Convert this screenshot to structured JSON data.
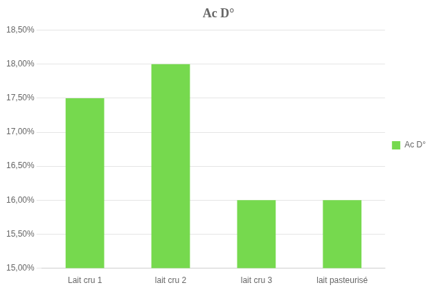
{
  "chart_data": {
    "type": "bar",
    "title": "Ac D°",
    "categories": [
      "Lait cru 1",
      "lait cru 2",
      "lait cru 3",
      "lait pasteurisé"
    ],
    "series": [
      {
        "name": "Ac D°",
        "color": "#76D94E",
        "values": [
          0.175,
          0.18,
          0.16,
          0.16
        ]
      }
    ],
    "ylim": [
      0.15,
      0.185
    ],
    "yticks": [
      {
        "value": 0.15,
        "label": "15,00%"
      },
      {
        "value": 0.155,
        "label": "15,50%"
      },
      {
        "value": 0.16,
        "label": "16,00%"
      },
      {
        "value": 0.165,
        "label": "16,50%"
      },
      {
        "value": 0.17,
        "label": "17,00%"
      },
      {
        "value": 0.175,
        "label": "17,50%"
      },
      {
        "value": 0.18,
        "label": "18,00%"
      },
      {
        "value": 0.185,
        "label": "18,50%"
      }
    ],
    "grid": true,
    "legend": "right"
  }
}
